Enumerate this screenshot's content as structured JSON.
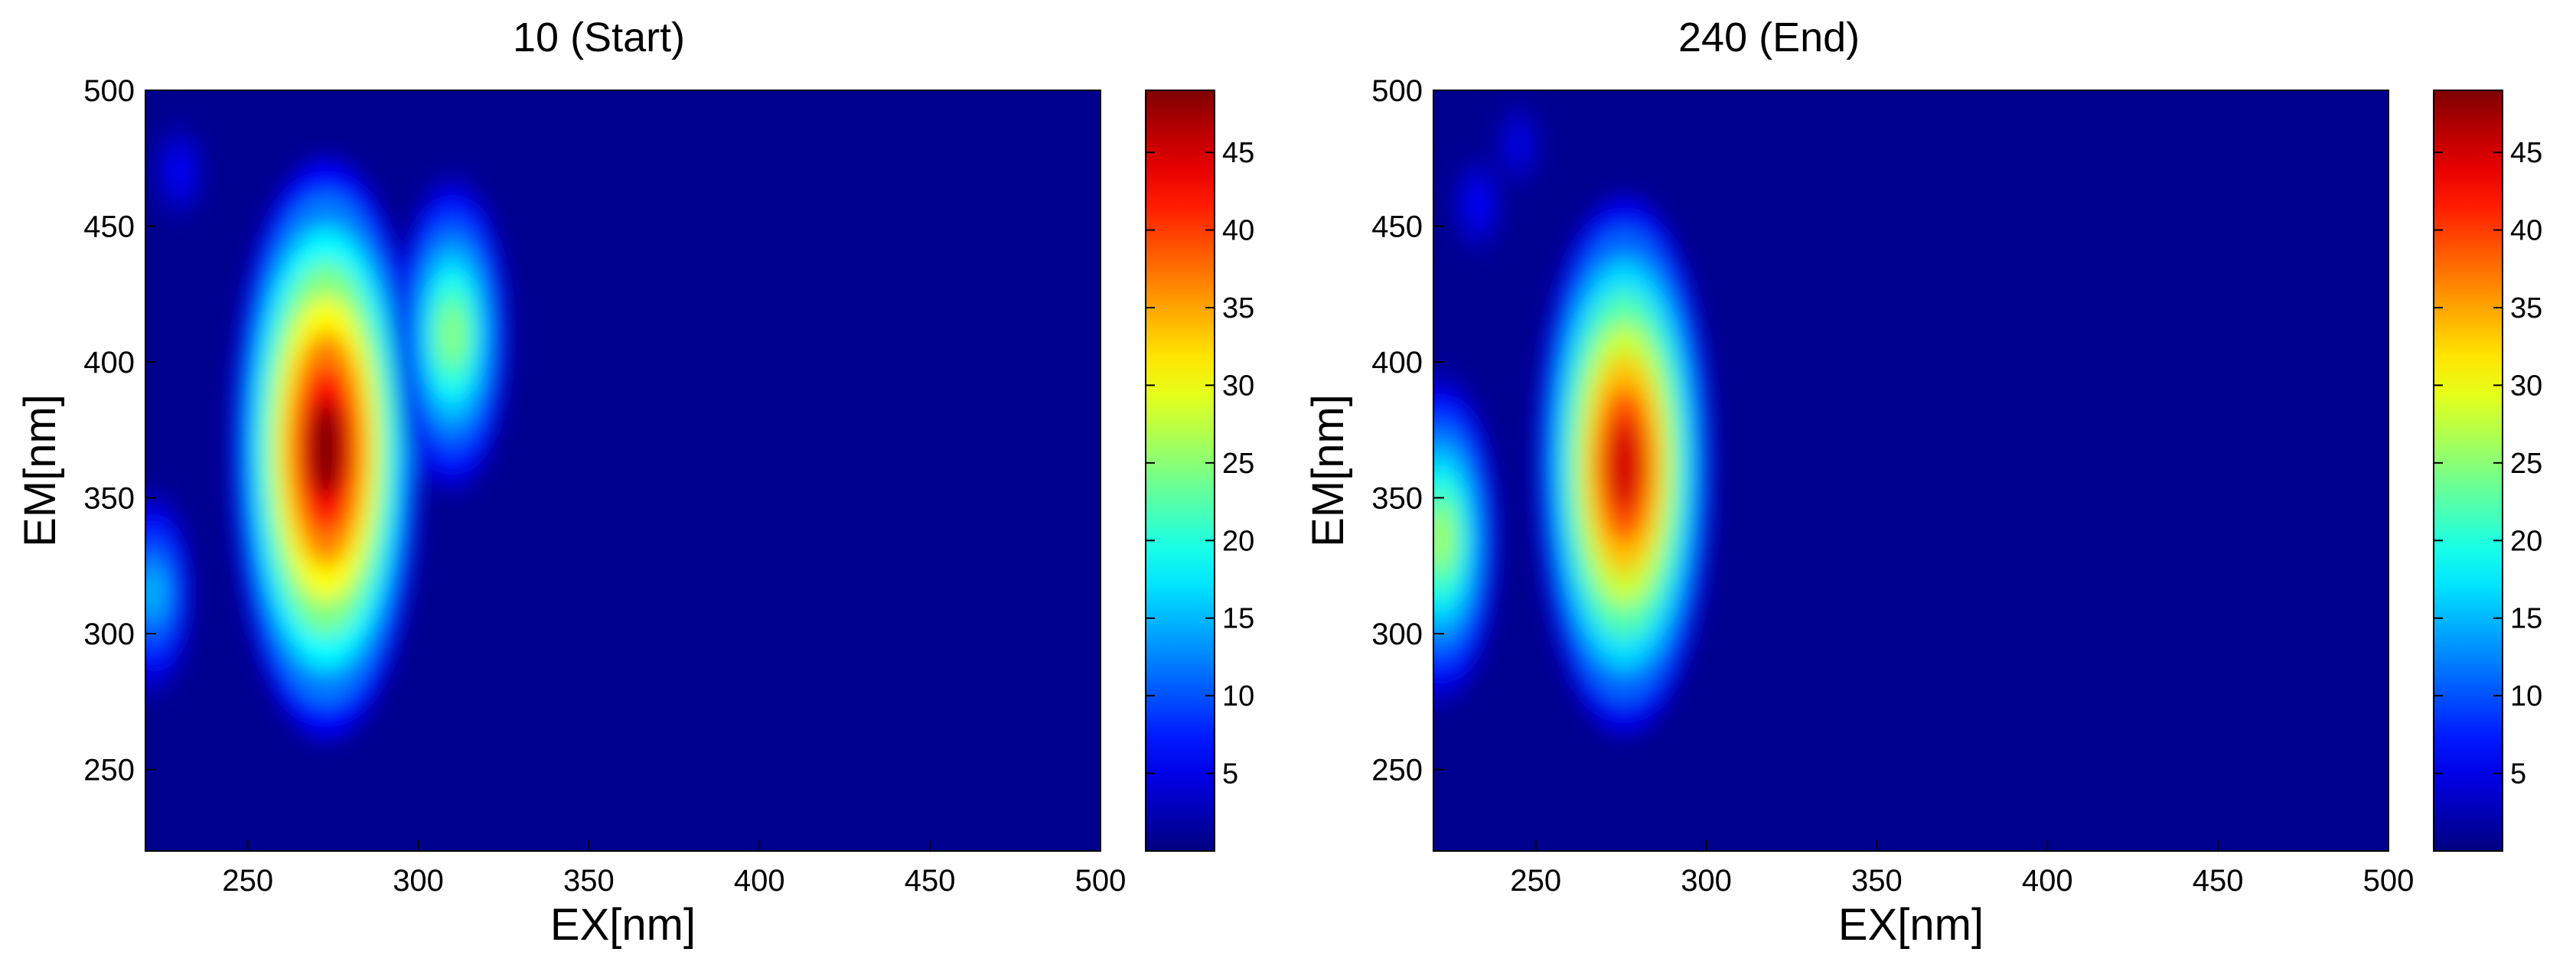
{
  "chart_data": [
    {
      "type": "heatmap",
      "title": "10 (Start)",
      "xlabel": "EX[nm]",
      "ylabel": "EM[nm]",
      "xlim": [
        220,
        500
      ],
      "ylim": [
        220,
        500
      ],
      "xticks": [
        "250",
        "300",
        "350",
        "400",
        "450",
        "500"
      ],
      "yticks": [
        "250",
        "300",
        "350",
        "400",
        "450",
        "500"
      ],
      "colorbar": {
        "colormap": "jet",
        "range": [
          0,
          49
        ],
        "ticks": [
          "5",
          "10",
          "15",
          "20",
          "25",
          "30",
          "35",
          "40",
          "45"
        ]
      },
      "features": [
        {
          "ex": 273,
          "em": 368,
          "intensity": 49
        },
        {
          "ex": 310,
          "em": 410,
          "intensity": 25
        },
        {
          "ex": 222,
          "em": 315,
          "intensity": 15
        },
        {
          "ex": 230,
          "em": 470,
          "intensity": 6
        }
      ]
    },
    {
      "type": "heatmap",
      "title": "240 (End)",
      "xlabel": "EX[nm]",
      "ylabel": "EM[nm]",
      "xlim": [
        220,
        500
      ],
      "ylim": [
        220,
        500
      ],
      "xticks": [
        "250",
        "300",
        "350",
        "400",
        "450",
        "500"
      ],
      "yticks": [
        "250",
        "300",
        "350",
        "400",
        "450",
        "500"
      ],
      "colorbar": {
        "colormap": "jet",
        "range": [
          0,
          49
        ],
        "ticks": [
          "5",
          "10",
          "15",
          "20",
          "25",
          "30",
          "35",
          "40",
          "45"
        ]
      },
      "features": [
        {
          "ex": 276,
          "em": 362,
          "intensity": 45
        },
        {
          "ex": 222,
          "em": 335,
          "intensity": 26
        },
        {
          "ex": 233,
          "em": 458,
          "intensity": 6
        },
        {
          "ex": 245,
          "em": 480,
          "intensity": 5
        }
      ]
    }
  ]
}
